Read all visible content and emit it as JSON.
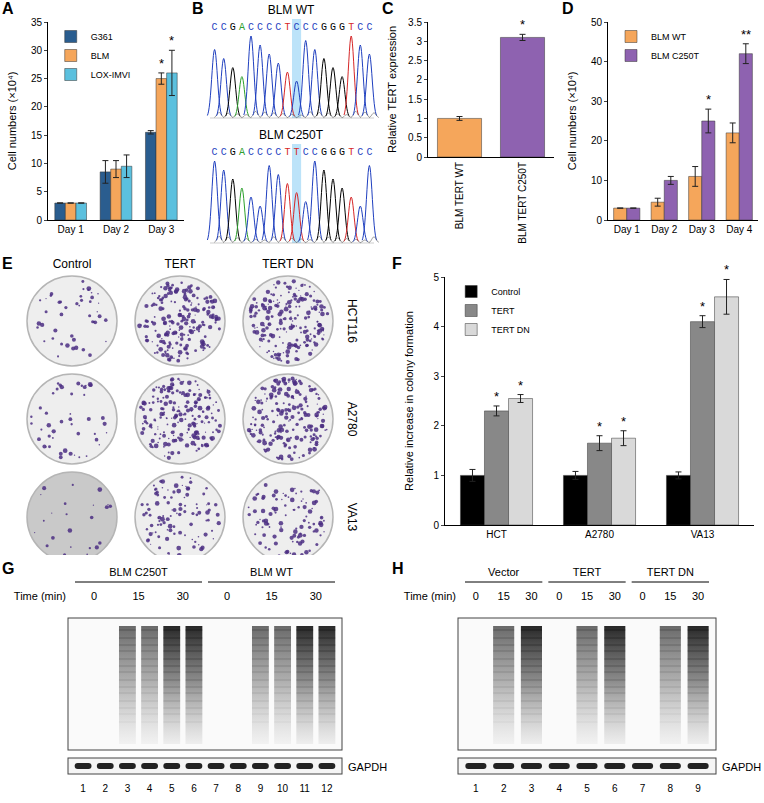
{
  "chart_data": [
    {
      "panel_label": "A",
      "type": "bar",
      "categories": [
        "Day 1",
        "Day 2",
        "Day 3"
      ],
      "series": [
        {
          "name": "G361",
          "color": "#2a5d8f",
          "values": [
            3,
            8.5,
            15.5
          ],
          "errors": [
            0,
            2,
            0.3
          ]
        },
        {
          "name": "BLM",
          "color": "#f5a65b",
          "values": [
            3,
            9,
            25
          ],
          "errors": [
            0,
            1.5,
            1
          ]
        },
        {
          "name": "LOX-IMVI",
          "color": "#5bc0de",
          "values": [
            3,
            9.5,
            26
          ],
          "errors": [
            0,
            2,
            4
          ]
        }
      ],
      "y_label": "Cell numbers (×10⁴)",
      "ylim": [
        0,
        35
      ],
      "yticks": [
        0,
        5,
        10,
        15,
        20,
        25,
        30,
        35
      ],
      "grid": false,
      "legend": "top-left",
      "annotations": [
        {
          "category": "Day 3",
          "series": "BLM",
          "text": "*"
        },
        {
          "category": "Day 3",
          "series": "LOX-IMVI",
          "text": "*"
        }
      ]
    },
    {
      "panel_label": "C",
      "type": "bar",
      "categories": [
        "BLM TERT WT",
        "BLM TERT C250T"
      ],
      "values": [
        1,
        3.1
      ],
      "errors": [
        0.05,
        0.08
      ],
      "colors": [
        "#f5a65b",
        "#8e62b0"
      ],
      "y_label": "Relative TERT expression",
      "ylim": [
        0,
        3.5
      ],
      "yticks": [
        0,
        0.5,
        1,
        1.5,
        2,
        2.5,
        3,
        3.5
      ],
      "grid": false,
      "annotations": [
        {
          "category": "BLM TERT C250T",
          "text": "*"
        }
      ]
    },
    {
      "panel_label": "D",
      "type": "bar",
      "categories": [
        "Day 1",
        "Day 2",
        "Day 3",
        "Day 4"
      ],
      "series": [
        {
          "name": "BLM WT",
          "color": "#f5a65b",
          "values": [
            3,
            4.5,
            11,
            22
          ],
          "errors": [
            0,
            1,
            2.5,
            2.5
          ]
        },
        {
          "name": "BLM C250T",
          "color": "#8e62b0",
          "values": [
            3,
            10,
            25,
            42
          ],
          "errors": [
            0,
            1,
            3,
            2.5
          ]
        }
      ],
      "y_label": "Cell numbers (×10⁴)",
      "ylim": [
        0,
        50
      ],
      "yticks": [
        0,
        10,
        20,
        30,
        40,
        50
      ],
      "grid": false,
      "legend": "top-left",
      "annotations": [
        {
          "category": "Day 3",
          "series": "BLM C250T",
          "text": "*"
        },
        {
          "category": "Day 4",
          "series": "BLM C250T",
          "text": "**"
        }
      ]
    },
    {
      "panel_label": "F",
      "type": "bar",
      "categories": [
        "HCT",
        "A2780",
        "VA13"
      ],
      "series": [
        {
          "name": "Control",
          "color": "#000000",
          "values": [
            1,
            1,
            1
          ],
          "errors": [
            0.12,
            0.08,
            0.07
          ]
        },
        {
          "name": "TERT",
          "color": "#888888",
          "values": [
            2.3,
            1.65,
            4.1
          ],
          "errors": [
            0.1,
            0.15,
            0.12
          ]
        },
        {
          "name": "TERT DN",
          "color": "#d9d9d9",
          "values": [
            2.55,
            1.75,
            4.6
          ],
          "errors": [
            0.08,
            0.15,
            0.35
          ]
        }
      ],
      "y_label": "Relative increase in colony formation",
      "ylim": [
        0,
        5
      ],
      "yticks": [
        0,
        1,
        2,
        3,
        4,
        5
      ],
      "grid": false,
      "legend": "top-left",
      "annotations": [
        {
          "category": "HCT",
          "series": "TERT",
          "text": "*"
        },
        {
          "category": "HCT",
          "series": "TERT DN",
          "text": "*"
        },
        {
          "category": "A2780",
          "series": "TERT",
          "text": "*"
        },
        {
          "category": "A2780",
          "series": "TERT DN",
          "text": "*"
        },
        {
          "category": "VA13",
          "series": "TERT",
          "text": "*"
        },
        {
          "category": "VA13",
          "series": "TERT DN",
          "text": "*"
        }
      ]
    }
  ],
  "sequencing": {
    "panel_label": "B",
    "traces": [
      {
        "title": "BLM WT",
        "sequence": "CCGACCCCTCCCGGGTCC",
        "highlighted_position": 10
      },
      {
        "title": "BLM C250T",
        "sequence": "CCGACCCCTTCCGGGTCC",
        "highlighted_position": 10
      }
    ]
  },
  "colony_assay": {
    "panel_label": "E",
    "columns": [
      "Control",
      "TERT",
      "TERT DN"
    ],
    "rows": [
      "HCT116",
      "A2780",
      "VA13"
    ]
  },
  "gels": [
    {
      "panel_label": "G",
      "groups": [
        {
          "name": "BLM C250T",
          "times": [
            0,
            15,
            30
          ]
        },
        {
          "name": "BLM WT",
          "times": [
            0,
            15,
            30
          ]
        }
      ],
      "lanes_per_time": 2,
      "time_label": "Time (min)",
      "loading_control": "GAPDH",
      "lane_numbers": [
        1,
        2,
        3,
        4,
        5,
        6,
        7,
        8,
        9,
        10,
        11,
        12
      ]
    },
    {
      "panel_label": "H",
      "groups": [
        {
          "name": "Vector",
          "times": [
            0,
            15,
            30
          ]
        },
        {
          "name": "TERT",
          "times": [
            0,
            15,
            30
          ]
        },
        {
          "name": "TERT DN",
          "times": [
            0,
            15,
            30
          ]
        }
      ],
      "lanes_per_time": 1,
      "time_label": "Time (min)",
      "loading_control": "GAPDH",
      "lane_numbers": [
        1,
        2,
        3,
        4,
        5,
        6,
        7,
        8,
        9
      ]
    }
  ]
}
